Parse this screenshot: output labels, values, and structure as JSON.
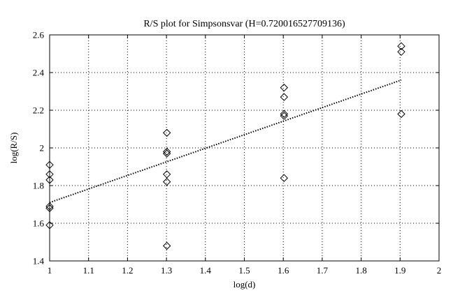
{
  "chart_data": {
    "type": "scatter",
    "title": "R/S plot for Simpsonsvar (H=0.720016527709136)",
    "xlabel": "log(d)",
    "ylabel": "log(R/S)",
    "xlim": [
      1,
      2
    ],
    "ylim": [
      1.4,
      2.6
    ],
    "xticks": [
      1,
      1.1,
      1.2,
      1.3,
      1.4,
      1.5,
      1.6,
      1.7,
      1.8,
      1.9,
      2
    ],
    "xtick_labels": [
      "1",
      "1.1",
      "1.2",
      "1.3",
      "1.4",
      "1.5",
      "1.6",
      "1.7",
      "1.8",
      "1.9",
      "2"
    ],
    "yticks": [
      1.4,
      1.6,
      1.8,
      2.0,
      2.2,
      2.4,
      2.6
    ],
    "ytick_labels": [
      "1.4",
      "1.6",
      "1.8",
      "2",
      "2.2",
      "2.4",
      "2.6"
    ],
    "grid": true,
    "marker": "diamond",
    "points": [
      {
        "x": 1.0,
        "y": 1.91
      },
      {
        "x": 1.0,
        "y": 1.86
      },
      {
        "x": 1.0,
        "y": 1.83
      },
      {
        "x": 1.0,
        "y": 1.69
      },
      {
        "x": 1.0,
        "y": 1.68
      },
      {
        "x": 1.0,
        "y": 1.59
      },
      {
        "x": 1.301,
        "y": 2.08
      },
      {
        "x": 1.301,
        "y": 1.98
      },
      {
        "x": 1.301,
        "y": 1.97
      },
      {
        "x": 1.301,
        "y": 1.86
      },
      {
        "x": 1.301,
        "y": 1.82
      },
      {
        "x": 1.301,
        "y": 1.48
      },
      {
        "x": 1.602,
        "y": 2.32
      },
      {
        "x": 1.602,
        "y": 2.27
      },
      {
        "x": 1.602,
        "y": 2.18
      },
      {
        "x": 1.602,
        "y": 2.17
      },
      {
        "x": 1.602,
        "y": 1.84
      },
      {
        "x": 1.903,
        "y": 2.54
      },
      {
        "x": 1.903,
        "y": 2.51
      },
      {
        "x": 1.903,
        "y": 2.18
      }
    ],
    "fit_line": {
      "style": "dotted",
      "x": [
        1.0,
        1.903
      ],
      "y": [
        1.71,
        2.36
      ]
    }
  }
}
